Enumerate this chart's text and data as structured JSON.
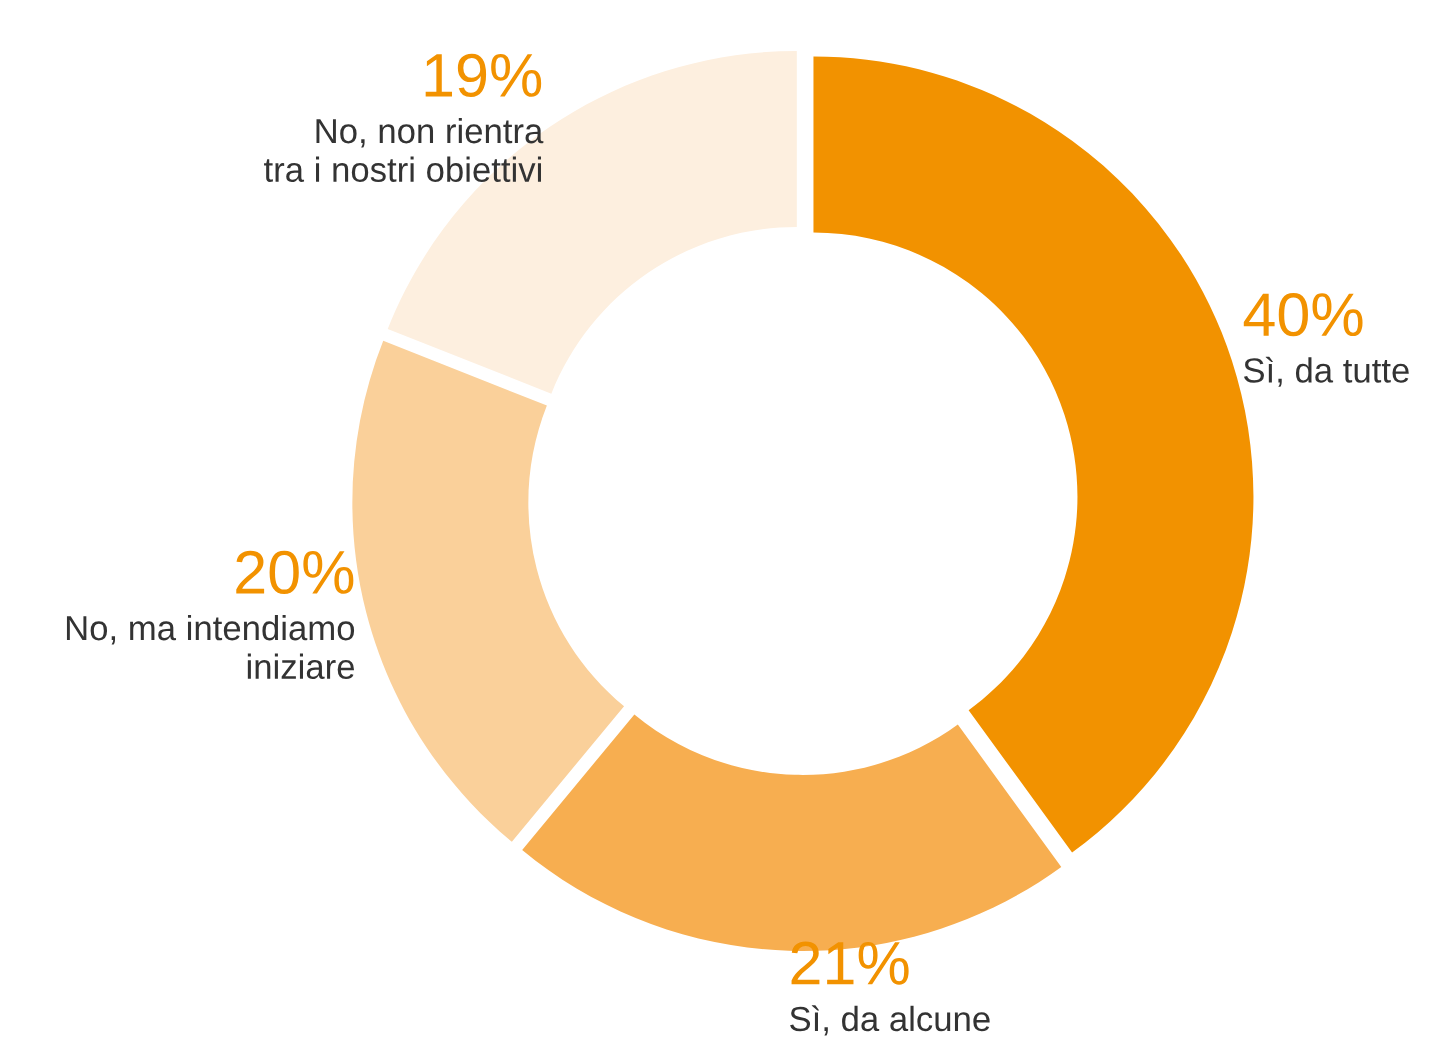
{
  "chart_data": {
    "type": "donut",
    "categories": [
      "Sì, da tutte",
      "Sì, da alcune",
      "No, ma intendiamo\niniziare",
      "No, non rientra\ntra i nostri obiettivi"
    ],
    "values": [
      40,
      21,
      20,
      19
    ],
    "colors": [
      "#f29200",
      "#f7ae50",
      "#fad09a",
      "#fdefdf"
    ],
    "value_labels": [
      "40%",
      "21%",
      "20%",
      "19%"
    ]
  }
}
